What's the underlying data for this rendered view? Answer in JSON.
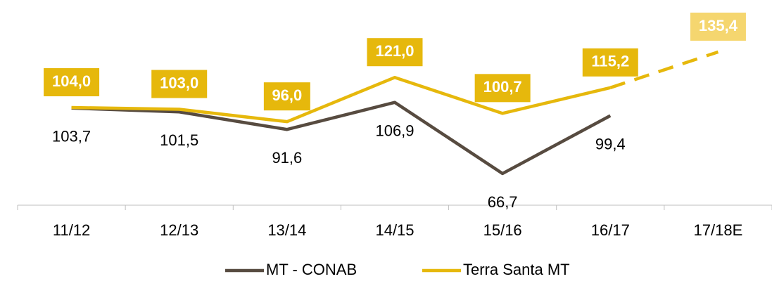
{
  "chart_data": {
    "type": "line",
    "categories": [
      "11/12",
      "12/13",
      "13/14",
      "14/15",
      "15/16",
      "16/17",
      "17/18E"
    ],
    "series": [
      {
        "name": "MT - CONAB",
        "color": "#574b40",
        "values": [
          103.7,
          101.5,
          91.6,
          106.9,
          66.7,
          99.4,
          null
        ],
        "value_labels": [
          "103,7",
          "101,5",
          "91,6",
          "106,9",
          "66,7",
          "99,4",
          null
        ]
      },
      {
        "name": "Terra Santa MT",
        "color": "#e6b80c",
        "values": [
          104.0,
          103.0,
          96.0,
          121.0,
          100.7,
          115.2,
          135.4
        ],
        "value_labels": [
          "104,0",
          "103,0",
          "96,0",
          "121,0",
          "100,7",
          "115,2",
          "135,4"
        ],
        "last_segment": "dashed"
      }
    ],
    "ylim": [
      50,
      160
    ],
    "legend": "bottom"
  }
}
